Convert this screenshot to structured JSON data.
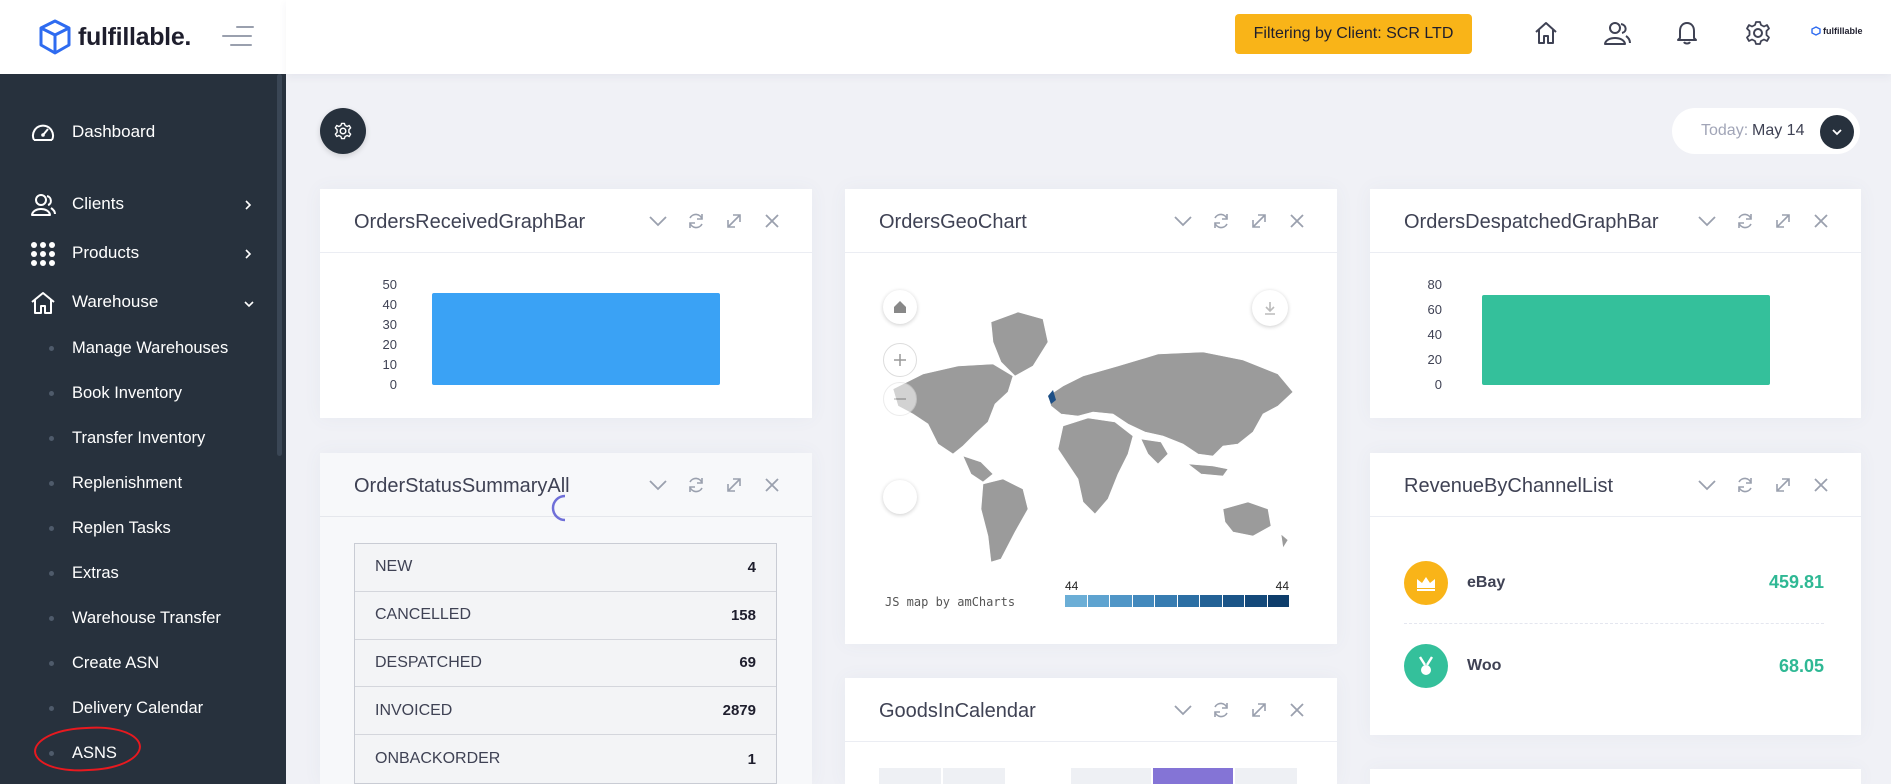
{
  "brand": {
    "name": "fulfillable.",
    "mini_logo": "fulfillable"
  },
  "topbar": {
    "filter_label": "Filtering by Client: SCR LTD",
    "icons": [
      "home-icon",
      "users-icon",
      "bell-icon",
      "gear-icon"
    ]
  },
  "sidebar": {
    "items": [
      {
        "label": "Dashboard",
        "icon": "dashboard-icon"
      },
      {
        "label": "Clients",
        "icon": "users-icon"
      },
      {
        "label": "Products",
        "icon": "grid-icon"
      },
      {
        "label": "Warehouse",
        "icon": "home-icon"
      }
    ],
    "sub_items": [
      "Manage Warehouses",
      "Book Inventory",
      "Transfer Inventory",
      "Replenishment",
      "Replen Tasks",
      "Extras",
      "Warehouse Transfer",
      "Create ASN",
      "Delivery Calendar",
      "ASNS"
    ]
  },
  "date": {
    "label": "Today:",
    "value": "May 14"
  },
  "widgets": {
    "orders_received": {
      "title": "OrdersReceivedGraphBar",
      "chart_data": {
        "type": "bar",
        "categories": [
          ""
        ],
        "values": [
          46
        ],
        "yticks": [
          "50",
          "40",
          "30",
          "20",
          "10",
          "0"
        ],
        "ylim": [
          0,
          50
        ],
        "color": "#3aa2f5"
      }
    },
    "geo": {
      "title": "OrdersGeoChart",
      "credit": "JS map by amCharts",
      "legend_min": "44",
      "legend_max": "44"
    },
    "orders_despatched": {
      "title": "OrdersDespatchedGraphBar",
      "chart_data": {
        "type": "bar",
        "categories": [
          ""
        ],
        "values": [
          72
        ],
        "yticks": [
          "80",
          "60",
          "40",
          "20",
          "0"
        ],
        "ylim": [
          0,
          80
        ],
        "color": "#34c09b"
      }
    },
    "order_status": {
      "title": "OrderStatusSummaryAll",
      "rows": [
        {
          "label": "NEW",
          "value": "4"
        },
        {
          "label": "CANCELLED",
          "value": "158"
        },
        {
          "label": "DESPATCHED",
          "value": "69"
        },
        {
          "label": "INVOICED",
          "value": "2879"
        },
        {
          "label": "ONBACKORDER",
          "value": "1"
        }
      ]
    },
    "revenue": {
      "title": "RevenueByChannelList",
      "rows": [
        {
          "name": "eBay",
          "value": "459.81",
          "color": "#f9b418",
          "icon": "crown-icon"
        },
        {
          "name": "Woo",
          "value": "68.05",
          "color": "#34c09b",
          "icon": "medal-icon"
        }
      ]
    },
    "goods_in": {
      "title": "GoodsInCalendar"
    }
  }
}
